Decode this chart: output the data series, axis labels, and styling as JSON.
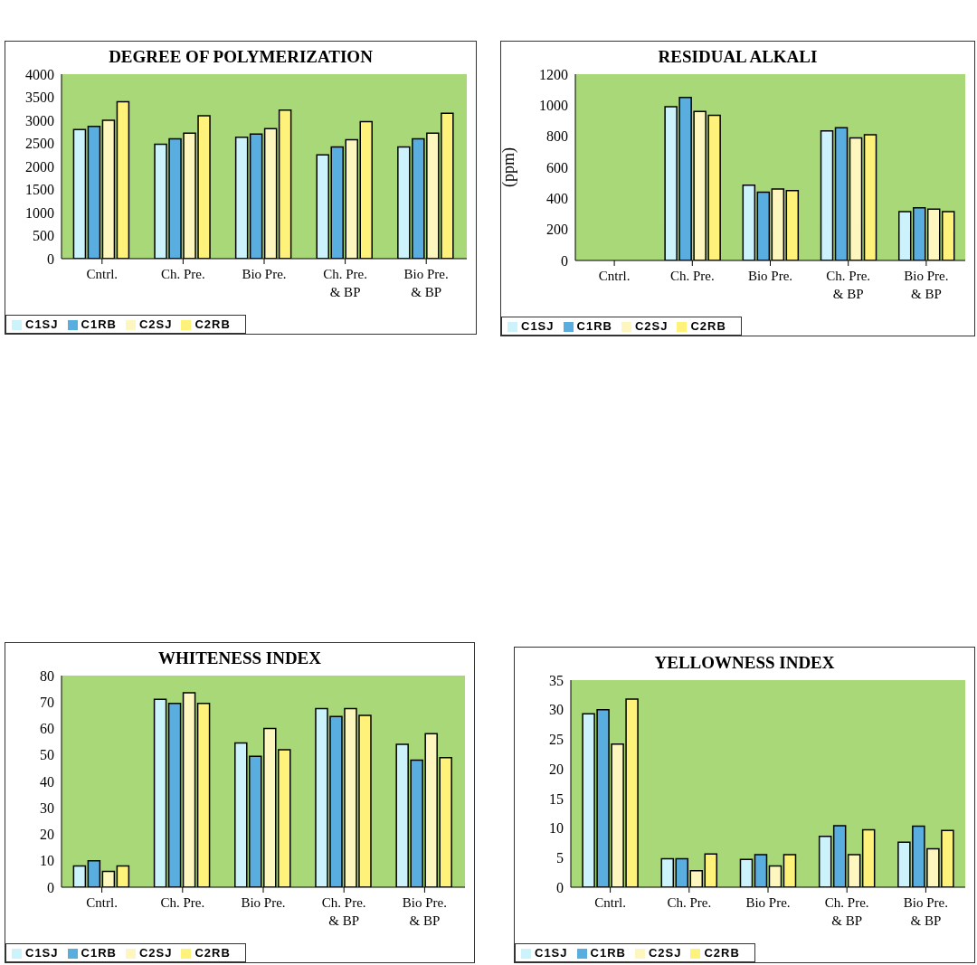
{
  "chart_data": [
    {
      "type": "bar",
      "title": "DEGREE OF POLYMERIZATION",
      "categories": [
        "Cntrl.",
        "Ch. Pre.",
        "Bio Pre.",
        "Ch. Pre.\n& BP",
        "Bio Pre.\n& BP"
      ],
      "ylim": [
        0,
        4000
      ],
      "yticks": [
        0,
        500,
        1000,
        1500,
        2000,
        2500,
        3000,
        3500,
        4000
      ],
      "legend": "bottom left",
      "grid": false,
      "series": [
        {
          "name": "C1SJ",
          "color": "#ccf2fb",
          "values": [
            2800,
            2480,
            2630,
            2250,
            2420
          ]
        },
        {
          "name": "C1RB",
          "color": "#5aaedf",
          "values": [
            2870,
            2600,
            2700,
            2420,
            2600
          ]
        },
        {
          "name": "C2SJ",
          "color": "#fdf6be",
          "values": [
            3000,
            2720,
            2820,
            2580,
            2720
          ]
        },
        {
          "name": "C2RB",
          "color": "#fff27a",
          "values": [
            3400,
            3100,
            3220,
            2970,
            3150
          ]
        }
      ]
    },
    {
      "type": "bar",
      "title": "RESIDUAL ALKALI",
      "ylabel": "(ppm)",
      "categories": [
        "Cntrl.",
        "Ch. Pre.",
        "Bio Pre.",
        "Ch. Pre.\n& BP",
        "Bio Pre.\n& BP"
      ],
      "ylim": [
        0,
        1200
      ],
      "yticks": [
        0,
        200,
        400,
        600,
        800,
        1000,
        1200
      ],
      "legend": "bottom left",
      "grid": false,
      "series": [
        {
          "name": "C1SJ",
          "color": "#ccf2fb",
          "values": [
            null,
            990,
            485,
            835,
            315
          ]
        },
        {
          "name": "C1RB",
          "color": "#5aaedf",
          "values": [
            null,
            1050,
            440,
            855,
            340
          ]
        },
        {
          "name": "C2SJ",
          "color": "#fdf6be",
          "values": [
            null,
            960,
            460,
            790,
            330
          ]
        },
        {
          "name": "C2RB",
          "color": "#fff27a",
          "values": [
            null,
            935,
            450,
            810,
            315
          ]
        }
      ]
    },
    {
      "type": "bar",
      "title": "WHITENESS INDEX",
      "categories": [
        "Cntrl.",
        "Ch. Pre.",
        "Bio Pre.",
        "Ch. Pre.\n& BP",
        "Bio Pre.\n& BP"
      ],
      "ylim": [
        0,
        80
      ],
      "yticks": [
        0,
        10,
        20,
        30,
        40,
        50,
        60,
        70,
        80
      ],
      "legend": "bottom left",
      "grid": false,
      "series": [
        {
          "name": "C1SJ",
          "color": "#ccf2fb",
          "values": [
            8,
            71,
            54.5,
            67.5,
            54
          ]
        },
        {
          "name": "C1RB",
          "color": "#5aaedf",
          "values": [
            10,
            69.5,
            49.5,
            64.5,
            48
          ]
        },
        {
          "name": "C2SJ",
          "color": "#fdf6be",
          "values": [
            6,
            73.5,
            60,
            67.5,
            58
          ]
        },
        {
          "name": "C2RB",
          "color": "#fff27a",
          "values": [
            8,
            69.5,
            52,
            65,
            49
          ]
        }
      ]
    },
    {
      "type": "bar",
      "title": "YELLOWNESS INDEX",
      "categories": [
        "Cntrl.",
        "Ch. Pre.",
        "Bio Pre.",
        "Ch. Pre.\n& BP",
        "Bio Pre.\n& BP"
      ],
      "ylim": [
        0,
        35
      ],
      "yticks": [
        0,
        5,
        10,
        15,
        20,
        25,
        30,
        35
      ],
      "legend": "bottom left",
      "grid": false,
      "series": [
        {
          "name": "C1SJ",
          "color": "#ccf2fb",
          "values": [
            29.3,
            4.8,
            4.7,
            8.6,
            7.6
          ]
        },
        {
          "name": "C1RB",
          "color": "#5aaedf",
          "values": [
            30,
            4.8,
            5.5,
            10.4,
            10.3
          ]
        },
        {
          "name": "C2SJ",
          "color": "#fdf6be",
          "values": [
            24.2,
            2.8,
            3.6,
            5.5,
            6.5
          ]
        },
        {
          "name": "C2RB",
          "color": "#fff27a",
          "values": [
            31.8,
            5.6,
            5.5,
            9.7,
            9.6
          ]
        }
      ]
    }
  ]
}
